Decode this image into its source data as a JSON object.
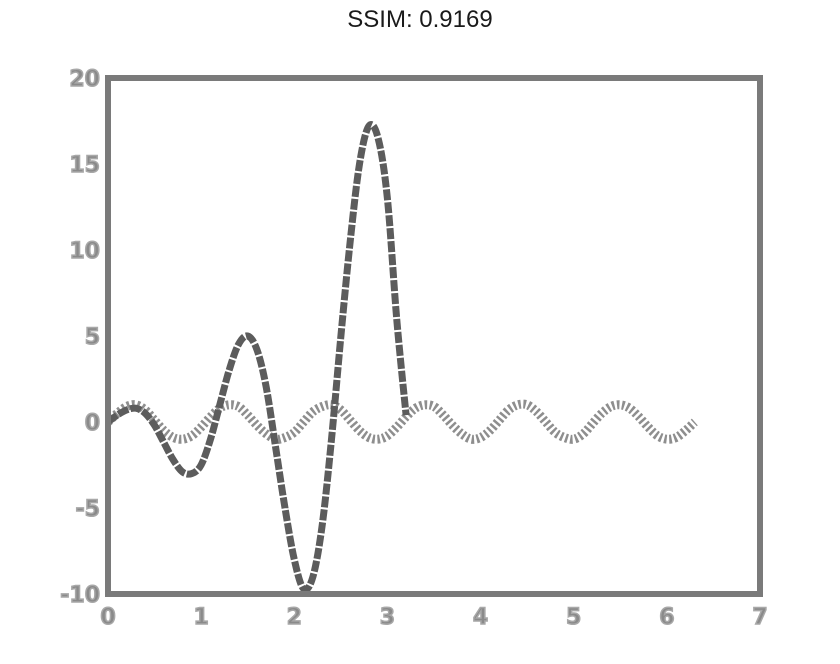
{
  "chart_data": {
    "type": "line",
    "title": "SSIM: 0.9169",
    "xlabel": "",
    "ylabel": "",
    "xlim": [
      0,
      7
    ],
    "ylim": [
      -10,
      20
    ],
    "xticks": [
      "0",
      "1",
      "2",
      "3",
      "4",
      "5",
      "6",
      "7"
    ],
    "yticks": [
      "-10",
      "-5",
      "0",
      "5",
      "10",
      "15",
      "20"
    ],
    "grid": false,
    "series": [
      {
        "style": "dashed-thick",
        "color": "#5c5c5c",
        "x": [
          0,
          0.1,
          0.2,
          0.3,
          0.4,
          0.5,
          0.6,
          0.7,
          0.8,
          0.9,
          1.0,
          1.1,
          1.2,
          1.3,
          1.4,
          1.5,
          1.6,
          1.7,
          1.8,
          1.9,
          2.0,
          2.1,
          2.2,
          2.3,
          2.4,
          2.5,
          2.6,
          2.7,
          2.8,
          2.9,
          3.0,
          3.1,
          3.2
        ],
        "y": [
          0,
          0.4,
          0.7,
          0.8,
          0.5,
          -0.2,
          -1.2,
          -2.2,
          -2.9,
          -3.0,
          -2.5,
          -1.0,
          1.0,
          3.0,
          4.5,
          5.0,
          4.2,
          2.0,
          -1.5,
          -5.0,
          -8.0,
          -9.7,
          -9.0,
          -6.0,
          -1.0,
          5.0,
          10.5,
          15.0,
          17.2,
          16.5,
          13.0,
          6.0,
          0.4
        ]
      },
      {
        "style": "dotted-thick",
        "color": "#8e8e8e",
        "x": [
          0,
          0.1,
          0.2,
          0.3,
          0.4,
          0.5,
          0.6,
          0.7,
          0.8,
          0.9,
          1.0,
          1.1,
          1.2,
          1.3,
          1.4,
          1.5,
          1.6,
          1.7,
          1.8,
          1.9,
          2.0,
          2.1,
          2.2,
          2.3,
          2.4,
          2.5,
          2.6,
          2.7,
          2.8,
          2.9,
          3.0,
          3.1,
          3.2,
          3.3,
          3.4,
          3.5,
          3.6,
          3.7,
          3.8,
          3.9,
          4.0,
          4.1,
          4.2,
          4.3,
          4.4,
          4.5,
          4.6,
          4.7,
          4.8,
          4.9,
          5.0,
          5.1,
          5.2,
          5.3,
          5.4,
          5.5,
          5.6,
          5.7,
          5.8,
          5.9,
          6.0,
          6.1,
          6.2,
          6.3
        ],
        "y": [
          0,
          0.5,
          0.9,
          1.0,
          0.7,
          0.1,
          -0.5,
          -0.9,
          -1.0,
          -0.8,
          -0.3,
          0.3,
          0.8,
          1.0,
          0.9,
          0.4,
          -0.2,
          -0.7,
          -1.0,
          -0.9,
          -0.6,
          0.0,
          0.6,
          0.9,
          1.0,
          0.7,
          0.1,
          -0.5,
          -0.9,
          -1.0,
          -0.8,
          -0.3,
          0.3,
          0.8,
          1.0,
          0.9,
          0.4,
          -0.2,
          -0.7,
          -1.0,
          -0.9,
          -0.5,
          0.1,
          0.7,
          1.0,
          1.0,
          0.6,
          0.0,
          -0.6,
          -0.9,
          -1.0,
          -0.7,
          -0.1,
          0.5,
          0.9,
          1.0,
          0.8,
          0.3,
          -0.3,
          -0.8,
          -1.0,
          -0.9,
          -0.5,
          0.0
        ]
      }
    ]
  }
}
